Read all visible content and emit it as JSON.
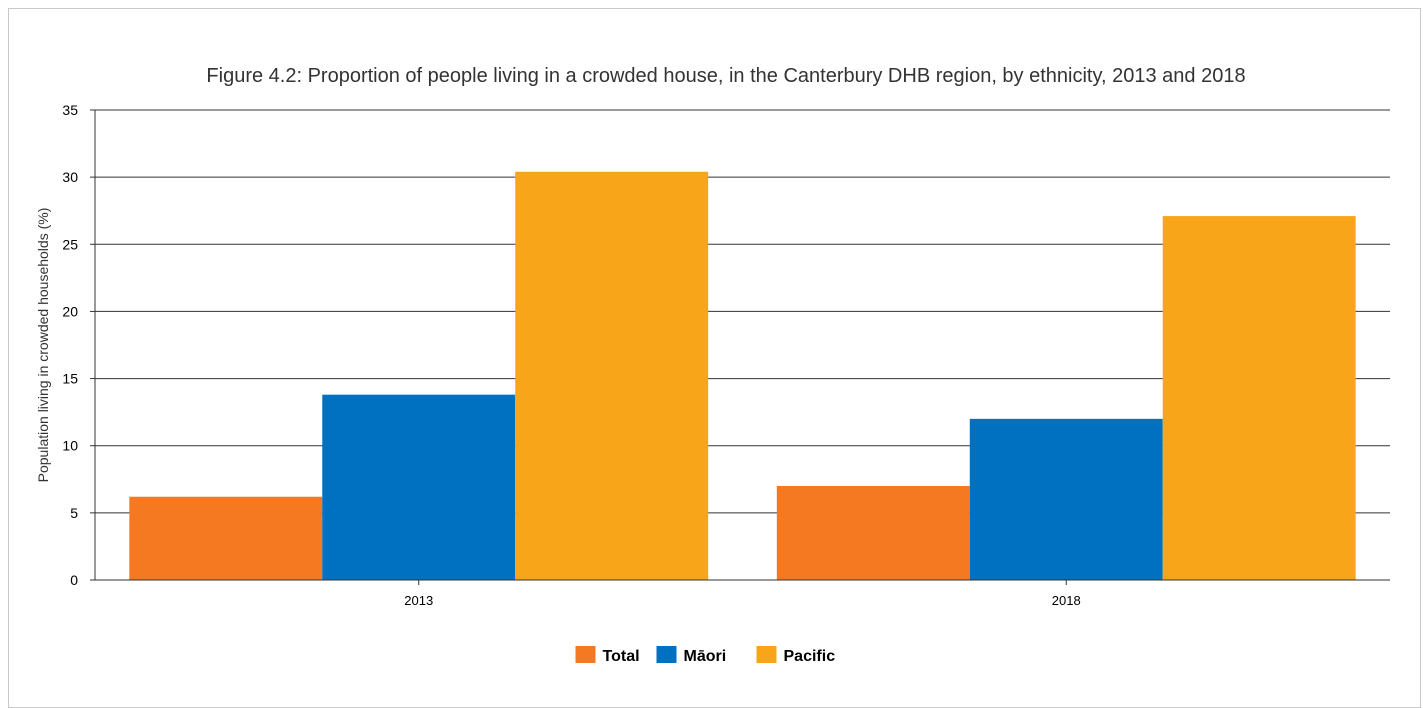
{
  "chart_data": {
    "type": "bar",
    "title": "Figure 4.2: Proportion of people living in a crowded house, in the Canterbury DHB region, by ethnicity, 2013 and 2018",
    "xlabel": "",
    "ylabel": "Population living in crowded households (%)",
    "categories": [
      "2013",
      "2018"
    ],
    "series": [
      {
        "name": "Total",
        "values": [
          6.2,
          7.0
        ],
        "color": "#f47920"
      },
      {
        "name": "Māori",
        "values": [
          13.8,
          12.0
        ],
        "color": "#0070c0"
      },
      {
        "name": "Pacific",
        "values": [
          30.4,
          27.1
        ],
        "color": "#f9a51a"
      }
    ],
    "ylim": [
      0,
      35
    ],
    "yticks": [
      0,
      5,
      10,
      15,
      20,
      25,
      30,
      35
    ],
    "grid": true,
    "legend_position": "bottom-center"
  }
}
